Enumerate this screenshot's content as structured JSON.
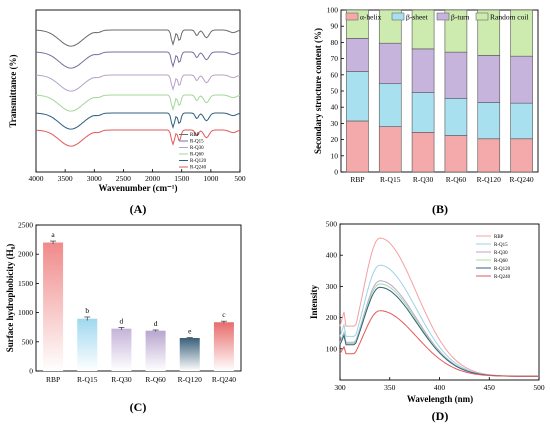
{
  "chart_data": [
    {
      "panel": "(A)",
      "type": "line",
      "xlabel": "Wavenumber (cm⁻¹)",
      "ylabel": "Transmittance (%)",
      "xlim": [
        4000,
        500
      ],
      "xticks": [
        "4000",
        "3500",
        "3000",
        "2500",
        "2000",
        "1500",
        "1000",
        "500"
      ],
      "legend": "bottom-right",
      "series": [
        {
          "name": "RBP",
          "color": "#6b6b6b"
        },
        {
          "name": "R-Q15",
          "color": "#7a6fa0"
        },
        {
          "name": "R-Q30",
          "color": "#b6a3c9"
        },
        {
          "name": "R-Q60",
          "color": "#a3d79a"
        },
        {
          "name": "R-Q120",
          "color": "#2f5f7f"
        },
        {
          "name": "R-Q240",
          "color": "#e15a5a"
        }
      ]
    },
    {
      "panel": "(B)",
      "type": "bar",
      "stacked": true,
      "ylabel": "Secondary structure content (%)",
      "ylim": [
        0,
        100
      ],
      "yticks": [
        "0",
        "10",
        "20",
        "30",
        "40",
        "50",
        "60",
        "70",
        "80",
        "90",
        "100"
      ],
      "categories": [
        "RBP",
        "R-Q15",
        "R-Q30",
        "R-Q60",
        "R-Q120",
        "R-Q240"
      ],
      "legend": "top",
      "series": [
        {
          "name": "α-helix",
          "color": "#f4aaaa",
          "values": [
            31.5,
            28,
            24.5,
            22.5,
            20.5,
            20.5
          ]
        },
        {
          "name": "β-sheet",
          "color": "#a8e0f0",
          "values": [
            30.5,
            26.5,
            24.5,
            23,
            22.5,
            22
          ]
        },
        {
          "name": "β-turn",
          "color": "#c6b4dc",
          "values": [
            20.5,
            25,
            27,
            28.5,
            29,
            29
          ]
        },
        {
          "name": "Random coil",
          "color": "#cdeaaf",
          "values": [
            17.5,
            20.5,
            24,
            26,
            28,
            28.5
          ]
        }
      ]
    },
    {
      "panel": "(C)",
      "type": "bar",
      "ylabel": "Surface hydrophobicity (H₀)",
      "ylim": [
        0,
        2500
      ],
      "yticks": [
        "0",
        "500",
        "1000",
        "1500",
        "2000",
        "2500"
      ],
      "categories": [
        "RBP",
        "R-Q15",
        "R-Q30",
        "R-Q60",
        "R-Q120",
        "R-Q240"
      ],
      "values": [
        2200,
        895,
        725,
        690,
        565,
        835
      ],
      "errors": [
        25,
        30,
        22,
        12,
        8,
        18
      ],
      "letters": [
        "a",
        "b",
        "d",
        "d",
        "e",
        "c"
      ],
      "colors": [
        "#f08a8a",
        "#9fd8ef",
        "#c4b3d9",
        "#b8a6cf",
        "#3a5f7a",
        "#e86c6c"
      ]
    },
    {
      "panel": "(D)",
      "type": "line",
      "xlabel": "Wavelength (nm)",
      "ylabel": "Intensity",
      "xlim": [
        300,
        500
      ],
      "ylim": [
        0,
        500
      ],
      "xticks": [
        "300",
        "350",
        "400",
        "450",
        "500"
      ],
      "yticks": [
        "100",
        "200",
        "300",
        "400",
        "500"
      ],
      "legend": "top-right",
      "series": [
        {
          "name": "RBP",
          "color": "#f4a0a0",
          "peak_x": 340,
          "peak_y": 455
        },
        {
          "name": "R-Q15",
          "color": "#9ed3ea",
          "peak_x": 340,
          "peak_y": 368
        },
        {
          "name": "R-Q30",
          "color": "#b9a6d1",
          "peak_x": 340,
          "peak_y": 318
        },
        {
          "name": "R-Q60",
          "color": "#a8dc9e",
          "peak_x": 340,
          "peak_y": 308
        },
        {
          "name": "R-Q120",
          "color": "#2f5f7f",
          "peak_x": 340,
          "peak_y": 297
        },
        {
          "name": "R-Q240",
          "color": "#e15a5a",
          "peak_x": 340,
          "peak_y": 222
        }
      ]
    }
  ]
}
